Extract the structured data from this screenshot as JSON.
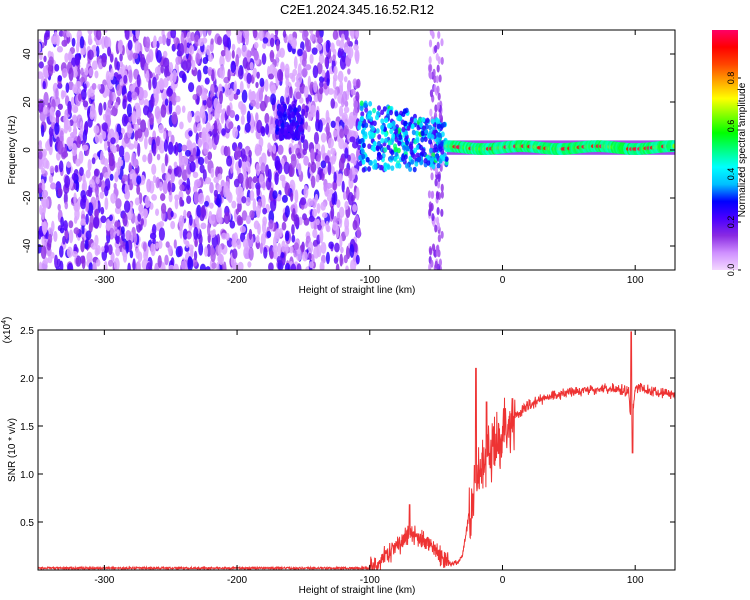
{
  "title": "C2E1.2024.345.16.52.R12",
  "chart_data": [
    {
      "type": "heatmap",
      "xlabel": "Height of straight line (km)",
      "ylabel": "Frequency (Hz)",
      "xlim": [
        -350,
        130
      ],
      "ylim": [
        -50,
        50
      ],
      "x_ticks": [
        -300,
        -200,
        -100,
        0,
        100
      ],
      "y_ticks": [
        -40,
        -20,
        0,
        20,
        40
      ],
      "grid": false,
      "colorbar": {
        "label": "Normalized spectral amplitude",
        "range": [
          0,
          1
        ],
        "ticks": [
          0.0,
          0.2,
          0.4,
          0.6,
          0.8
        ],
        "colors": [
          "#f4d8ff",
          "#cf90ff",
          "#8a2be2",
          "#4b00ff",
          "#0000ff",
          "#00bfff",
          "#00ffff",
          "#00ff80",
          "#00ff00",
          "#80ff00",
          "#ffff00",
          "#ffa500",
          "#ff4500",
          "#ff0000",
          "#ff0066"
        ]
      },
      "regions": [
        {
          "name": "scattered noise",
          "x": [
            -350,
            -108
          ],
          "freq": [
            -50,
            50
          ],
          "amplitude": [
            0.05,
            0.25
          ]
        },
        {
          "name": "burst",
          "x": [
            -170,
            -150
          ],
          "freq": [
            5,
            18
          ],
          "amplitude": [
            0.2,
            0.3
          ]
        },
        {
          "name": "transition",
          "x": [
            -108,
            -42
          ],
          "freq": [
            -15,
            20
          ],
          "amplitude": [
            0.2,
            0.5
          ]
        },
        {
          "name": "trace",
          "x": [
            -42,
            130
          ],
          "freq": [
            -2,
            4
          ],
          "amplitude": [
            0.5,
            1.0
          ]
        }
      ]
    },
    {
      "type": "line",
      "xlabel": "Height of straight line (km)",
      "ylabel": "SNR (10 * v/v)",
      "y_multiplier": "(x10^4)",
      "xlim": [
        -350,
        130
      ],
      "ylim": [
        0,
        2.5
      ],
      "x_ticks": [
        -300,
        -200,
        -100,
        0,
        100
      ],
      "y_ticks": [
        0.5,
        1.0,
        1.5,
        2.0,
        2.5
      ],
      "color": "#ee3333",
      "x": [
        -350,
        -100,
        -95,
        -90,
        -85,
        -80,
        -75,
        -70,
        -65,
        -60,
        -55,
        -50,
        -45,
        -40,
        -35,
        -30,
        -25,
        -20,
        -15,
        -10,
        -5,
        0,
        5,
        10,
        20,
        30,
        40,
        50,
        60,
        70,
        80,
        90,
        95,
        97,
        100,
        110,
        120,
        130
      ],
      "y": [
        0.02,
        0.02,
        0.06,
        0.12,
        0.18,
        0.25,
        0.3,
        0.4,
        0.35,
        0.3,
        0.25,
        0.2,
        0.12,
        0.08,
        0.06,
        0.15,
        0.6,
        0.9,
        1.1,
        1.2,
        1.3,
        1.45,
        1.55,
        1.6,
        1.72,
        1.78,
        1.82,
        1.85,
        1.87,
        1.88,
        1.89,
        1.88,
        1.85,
        1.5,
        1.9,
        1.87,
        1.85,
        1.82
      ]
    }
  ],
  "spikes": [
    {
      "x": -70,
      "y": 0.68
    },
    {
      "x": -20,
      "y": 2.1
    },
    {
      "x": -12,
      "y": 1.75
    },
    {
      "x": 97,
      "y": 2.48
    },
    {
      "x": 98,
      "y": 1.22
    }
  ]
}
